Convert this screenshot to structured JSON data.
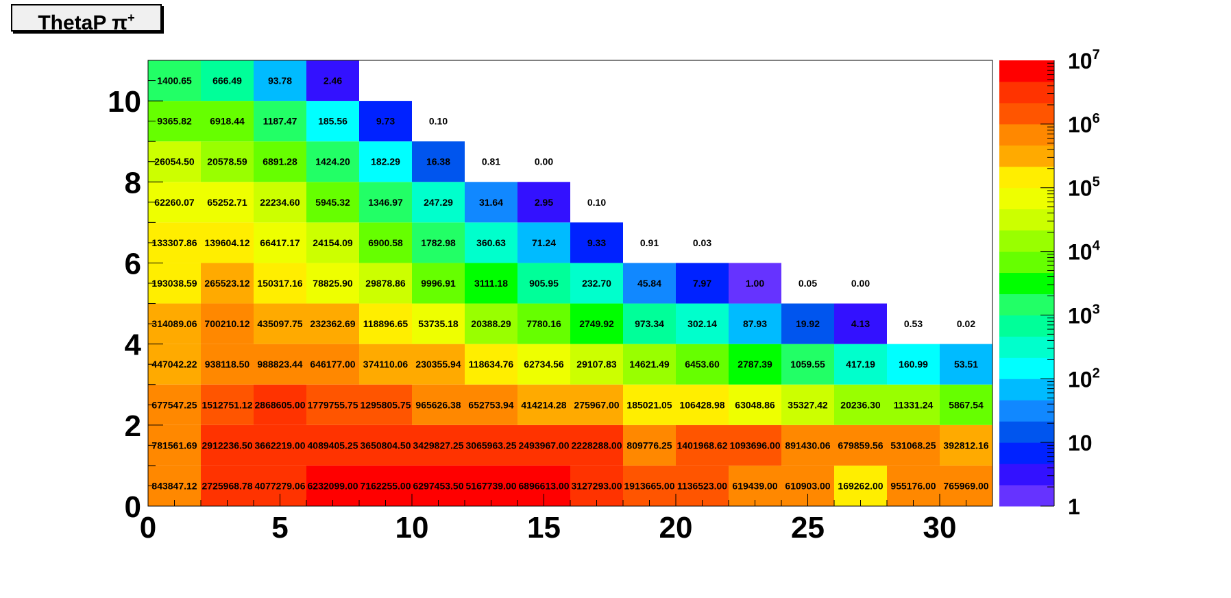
{
  "title": {
    "main": "ThetaP π",
    "charge": "+"
  },
  "chart_data": {
    "type": "heatmap",
    "title": "ThetaP π+",
    "xlabel": "",
    "ylabel": "",
    "x_bin_edges": [
      0,
      2,
      4,
      6,
      8,
      10,
      12,
      14,
      16,
      18,
      20,
      22,
      24,
      26,
      28,
      30,
      32
    ],
    "y_bin_edges": [
      0,
      1,
      2,
      3,
      4,
      5,
      6,
      7,
      8,
      9,
      10,
      11
    ],
    "xlim": [
      0,
      32
    ],
    "ylim": [
      0,
      11
    ],
    "x_ticks": [
      0,
      5,
      10,
      15,
      20,
      25,
      30
    ],
    "y_ticks": [
      0,
      2,
      4,
      6,
      8,
      10
    ],
    "z_scale": "log",
    "zlim": [
      1,
      10000000
    ],
    "colorbar_labels": [
      {
        "base": "1",
        "exp": ""
      },
      {
        "base": "10",
        "exp": ""
      },
      {
        "base": "10",
        "exp": "2"
      },
      {
        "base": "10",
        "exp": "3"
      },
      {
        "base": "10",
        "exp": "4"
      },
      {
        "base": "10",
        "exp": "5"
      },
      {
        "base": "10",
        "exp": "6"
      },
      {
        "base": "10",
        "exp": "7"
      }
    ],
    "palette": [
      "#6633ff",
      "#3311ff",
      "#0022ff",
      "#0055ee",
      "#1188ff",
      "#00bbff",
      "#00ffff",
      "#00ffcc",
      "#00ff99",
      "#22ff66",
      "#00ff00",
      "#66ff00",
      "#99ff00",
      "#ccff00",
      "#eeff00",
      "#ffee00",
      "#ffaa00",
      "#ff8800",
      "#ff5500",
      "#ff3300",
      "#ff0000"
    ],
    "rows": [
      [
        "843847.12",
        "2725968.78",
        "4077279.06",
        "6232099.00",
        "7162255.00",
        "6297453.50",
        "5167739.00",
        "6896613.00",
        "3127293.00",
        "1913665.00",
        "1136523.00",
        "619439.00",
        "610903.00",
        "169262.00",
        "955176.00",
        "765969.00"
      ],
      [
        "781561.69",
        "2912236.50",
        "3662219.00",
        "4089405.25",
        "3650804.50",
        "3429827.25",
        "3065963.25",
        "2493967.00",
        "2228288.00",
        "809776.25",
        "1401968.62",
        "1093696.00",
        "891430.06",
        "679859.56",
        "531068.25",
        "392812.16"
      ],
      [
        "677547.25",
        "1512751.12",
        "2868605.00",
        "1779755.75",
        "1295805.75",
        "965626.38",
        "652753.94",
        "414214.28",
        "275967.00",
        "185021.05",
        "106428.98",
        "63048.86",
        "35327.42",
        "20236.30",
        "11331.24",
        "5867.54"
      ],
      [
        "447042.22",
        "938118.50",
        "988823.44",
        "646177.00",
        "374110.06",
        "230355.94",
        "118634.76",
        "62734.56",
        "29107.83",
        "14621.49",
        "6453.60",
        "2787.39",
        "1059.55",
        "417.19",
        "160.99",
        "53.51"
      ],
      [
        "314089.06",
        "700210.12",
        "435097.75",
        "232362.69",
        "118896.65",
        "53735.18",
        "20388.29",
        "7780.16",
        "2749.92",
        "973.34",
        "302.14",
        "87.93",
        "19.92",
        "4.13",
        "0.53",
        "0.02"
      ],
      [
        "193038.59",
        "265523.12",
        "150317.16",
        "78825.90",
        "29878.86",
        "9996.91",
        "3111.18",
        "905.95",
        "232.70",
        "45.84",
        "7.97",
        "1.00",
        "0.05",
        "0.00",
        null,
        null
      ],
      [
        "133307.86",
        "139604.12",
        "66417.17",
        "24154.09",
        "6900.58",
        "1782.98",
        "360.63",
        "71.24",
        "9.33",
        "0.91",
        "0.03",
        null,
        null,
        null,
        null,
        null
      ],
      [
        "62260.07",
        "65252.71",
        "22234.60",
        "5945.32",
        "1346.97",
        "247.29",
        "31.64",
        "2.95",
        "0.10",
        null,
        null,
        null,
        null,
        null,
        null,
        null
      ],
      [
        "26054.50",
        "20578.59",
        "6891.28",
        "1424.20",
        "182.29",
        "16.38",
        "0.81",
        "0.00",
        null,
        null,
        null,
        null,
        null,
        null,
        null,
        null
      ],
      [
        "9365.82",
        "6918.44",
        "1187.47",
        "185.56",
        "9.73",
        "0.10",
        null,
        null,
        null,
        null,
        null,
        null,
        null,
        null,
        null,
        null
      ],
      [
        "1400.65",
        "666.49",
        "93.78",
        "2.46",
        null,
        null,
        null,
        null,
        null,
        null,
        null,
        null,
        null,
        null,
        null,
        null
      ]
    ]
  }
}
